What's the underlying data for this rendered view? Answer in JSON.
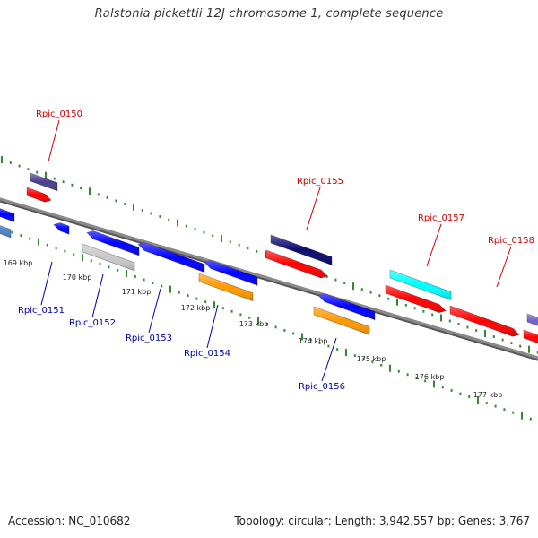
{
  "title": "Ralstonia pickettii 12J chromosome 1, complete sequence",
  "footer": {
    "accession_label": "Accession:",
    "accession": "NC_010682",
    "topology_label": "Topology:",
    "topology": "circular",
    "length_label": "Length:",
    "length": "3,942,557 bp",
    "genes_label": "Genes:",
    "genes": "3,767"
  },
  "colors": {
    "backbone": "#8a8a8a",
    "tick": "#2e8b2e",
    "label_top": "#cc0000",
    "label_bottom": "#0000aa",
    "kbp_label": "#222222"
  },
  "kbp_marks": [
    "169 kbp",
    "170 kbp",
    "171 kbp",
    "172 kbp",
    "173 kbp",
    "174 kbp",
    "175 kbp",
    "176 kbp",
    "177 kbp"
  ],
  "top_labels": [
    "Rpic_0150",
    "Rpic_0155",
    "Rpic_0157",
    "Rpic_0158"
  ],
  "bottom_labels": [
    "Rpic_0151",
    "Rpic_0152",
    "Rpic_0153",
    "Rpic_0154",
    "Rpic_0156"
  ]
}
